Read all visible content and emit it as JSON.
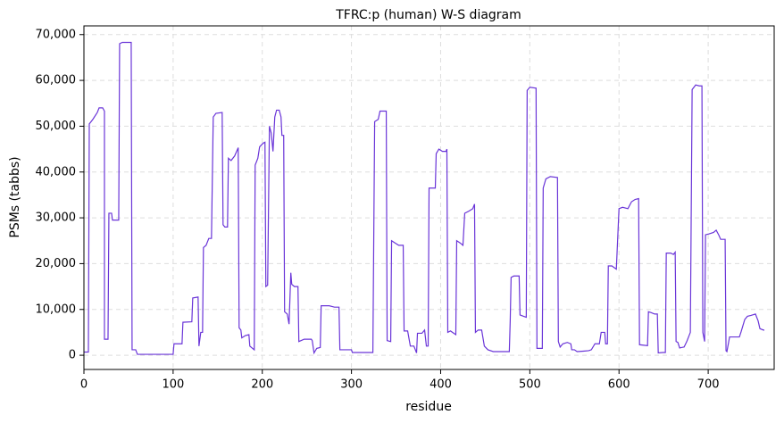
{
  "chart_data": {
    "type": "line",
    "title": "TFRC:p (human) W-S diagram",
    "x_label": "residue",
    "y_label": "PSMs (tabbs)",
    "x": [
      0,
      5,
      6,
      10,
      15,
      17,
      21,
      23,
      23,
      27,
      28,
      31,
      32,
      39,
      40,
      43,
      53,
      54,
      58,
      60,
      100,
      101,
      110,
      111,
      121,
      122,
      128,
      129,
      131,
      133,
      134,
      137,
      140,
      143,
      145,
      148,
      155,
      156,
      158,
      161,
      162,
      165,
      169,
      173,
      174,
      176,
      177,
      181,
      185,
      186,
      191,
      192,
      195,
      197,
      201,
      203,
      204,
      206,
      208,
      210,
      212,
      214,
      216,
      219,
      221,
      222,
      224,
      225,
      228,
      230,
      232,
      233,
      236,
      240,
      241,
      247,
      255,
      256,
      258,
      261,
      265,
      266,
      275,
      281,
      286,
      287,
      300,
      301,
      324,
      326,
      330,
      332,
      339,
      340,
      344,
      345,
      349,
      353,
      358,
      359,
      363,
      366,
      370,
      373,
      374,
      379,
      382,
      384,
      386,
      387,
      394,
      395,
      398,
      402,
      406,
      407,
      408,
      411,
      417,
      418,
      422,
      425,
      427,
      432,
      436,
      438,
      439,
      442,
      446,
      449,
      453,
      459,
      477,
      478,
      479,
      482,
      488,
      489,
      493,
      496,
      497,
      500,
      507,
      508,
      514,
      515,
      518,
      523,
      531,
      532,
      534,
      537,
      542,
      546,
      547,
      550,
      553,
      560,
      566,
      569,
      573,
      578,
      580,
      584,
      585,
      587,
      588,
      592,
      597,
      600,
      604,
      610,
      614,
      618,
      622,
      623,
      632,
      633,
      636,
      640,
      643,
      644,
      649,
      652,
      653,
      658,
      661,
      663,
      664,
      666,
      668,
      673,
      676,
      680,
      682,
      686,
      690,
      693,
      694,
      696,
      697,
      701,
      706,
      709,
      712,
      714,
      719,
      720,
      721,
      724,
      730,
      735,
      737,
      741,
      744,
      748,
      753,
      756,
      758,
      762,
      763
    ],
    "series": [
      {
        "name": "PSMs",
        "color": "#6a35d8",
        "values": [
          700,
          700,
          50500,
          51500,
          53000,
          54000,
          54000,
          53300,
          3500,
          3500,
          31000,
          31000,
          29500,
          29500,
          68000,
          68300,
          68300,
          1200,
          1200,
          200,
          200,
          2500,
          2500,
          7200,
          7300,
          12500,
          12700,
          2000,
          5000,
          5000,
          23500,
          24000,
          25500,
          25500,
          52000,
          52800,
          53000,
          28500,
          28000,
          28000,
          43000,
          42500,
          43500,
          45300,
          6000,
          5500,
          3800,
          4300,
          4500,
          2000,
          1200,
          41500,
          43000,
          45500,
          46300,
          46500,
          15000,
          15300,
          50000,
          48500,
          44500,
          52000,
          53500,
          53500,
          52000,
          48000,
          48000,
          9500,
          9000,
          6800,
          18000,
          15500,
          15000,
          15000,
          3000,
          3500,
          3500,
          3200,
          500,
          1500,
          1700,
          10800,
          10800,
          10500,
          10500,
          1200,
          1200,
          600,
          600,
          51000,
          51500,
          53300,
          53300,
          3200,
          3000,
          25000,
          24500,
          24000,
          24000,
          5300,
          5300,
          2000,
          2000,
          500,
          4800,
          4800,
          5500,
          2000,
          2000,
          36500,
          36500,
          44000,
          45000,
          44500,
          44500,
          45000,
          5000,
          5300,
          4500,
          25000,
          24500,
          24000,
          31000,
          31500,
          32000,
          33000,
          5000,
          5500,
          5500,
          2000,
          1200,
          800,
          800,
          7500,
          17000,
          17300,
          17300,
          8800,
          8500,
          8300,
          57800,
          58500,
          58300,
          1500,
          1500,
          36500,
          38500,
          39000,
          38800,
          3000,
          1800,
          2500,
          2800,
          2500,
          1200,
          1200,
          800,
          900,
          1000,
          1200,
          2500,
          2500,
          5000,
          5000,
          2500,
          2500,
          19500,
          19500,
          18800,
          32000,
          32300,
          32000,
          33500,
          34000,
          34200,
          2300,
          2100,
          9500,
          9300,
          9000,
          9000,
          500,
          600,
          600,
          22300,
          22300,
          22000,
          22500,
          3000,
          2800,
          1600,
          1800,
          3000,
          5000,
          58000,
          59000,
          58800,
          58800,
          5000,
          3000,
          26300,
          26500,
          26800,
          27300,
          26200,
          25300,
          25300,
          1000,
          800,
          4000,
          4000,
          4000,
          5200,
          7800,
          8500,
          8700,
          9000,
          7500,
          5800,
          5500,
          5500
        ]
      }
    ],
    "xlim": [
      0,
      774
    ],
    "ylim": [
      -3100,
      71900
    ],
    "xticks": [
      0,
      100,
      200,
      300,
      400,
      500,
      600,
      700
    ],
    "yticks": [
      0,
      {
        "value": 10000,
        "label": "10,000"
      },
      {
        "value": 20000,
        "label": "20,000"
      },
      {
        "value": 30000,
        "label": "30,000"
      },
      {
        "value": 40000,
        "label": "40,000"
      },
      {
        "value": 50000,
        "label": "50,000"
      },
      {
        "value": 60000,
        "label": "60,000"
      },
      {
        "value": 70000,
        "label": "70,000"
      }
    ],
    "grid": true
  }
}
